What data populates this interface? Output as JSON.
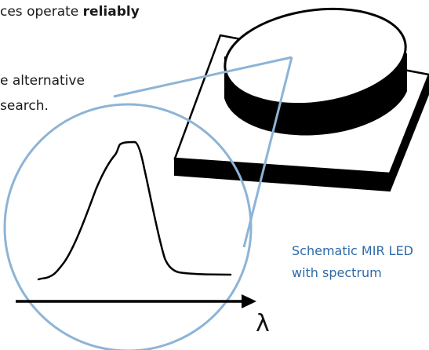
{
  "text": {
    "line1_plain": "ces operate ",
    "line1_bold": "reliably",
    "line2": "e alternative",
    "line3": "search."
  },
  "caption": {
    "line1": "Schematic MIR LED",
    "line2": "with spectrum"
  },
  "axis": {
    "symbol": "λ"
  },
  "colors": {
    "magnifier": "#8db4d6",
    "caption": "#2e6aa8",
    "led_body": "#000000"
  }
}
